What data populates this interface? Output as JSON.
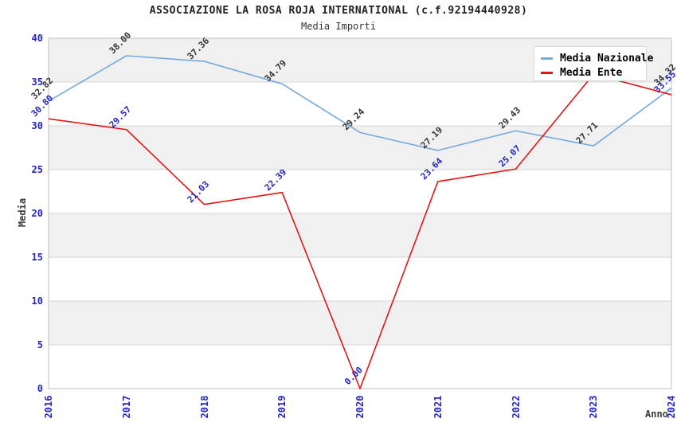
{
  "header": {
    "title": "ASSOCIAZIONE LA ROSA ROJA INTERNATIONAL (c.f.92194440928)",
    "subtitle": "Media Importi"
  },
  "chart_data": {
    "type": "line",
    "title": "ASSOCIAZIONE LA ROSA ROJA INTERNATIONAL (c.f.92194440928)",
    "subtitle": "Media Importi",
    "xlabel": "Anno",
    "ylabel": "Media",
    "x": [
      2016,
      2017,
      2018,
      2019,
      2020,
      2021,
      2022,
      2023,
      2024
    ],
    "x_ticks": [
      "2016",
      "2017",
      "2018",
      "2019",
      "2020",
      "2021",
      "2022",
      "2023",
      "2024"
    ],
    "y_ticks": [
      "0",
      "5",
      "10",
      "15",
      "20",
      "25",
      "30",
      "35",
      "40"
    ],
    "ylim": [
      0,
      40
    ],
    "ytick_step": 5,
    "grid": true,
    "band_fill": "alternating-gray-white",
    "legend_position": "top-right",
    "series": [
      {
        "name": "Media Nazionale",
        "color": "#74A9DF",
        "label_color": "#333333",
        "values": [
          32.82,
          38.0,
          37.36,
          34.79,
          29.24,
          27.19,
          29.43,
          27.71,
          34.32
        ],
        "labels": [
          "32.82",
          "38.00",
          "37.36",
          "34.79",
          "29.24",
          "27.19",
          "29.43",
          "27.71",
          "34.32"
        ]
      },
      {
        "name": "Media Ente",
        "color": "#E81313",
        "label_color": "#2424C8",
        "values": [
          30.8,
          29.57,
          21.03,
          22.39,
          0.0,
          23.64,
          25.07,
          35.9,
          33.55
        ],
        "labels": [
          "30.80",
          "29.57",
          "21.03",
          "22.39",
          "0.00",
          "23.64",
          "25.07",
          "",
          "33.55"
        ]
      }
    ]
  },
  "style": {
    "tick_color": "#2424C8",
    "band_gray": "#F0F0F0",
    "gridline_color": "#D6D6D6",
    "plot_border_color": "#C0C0C0",
    "axis_title_color": "#3A3A3A"
  }
}
